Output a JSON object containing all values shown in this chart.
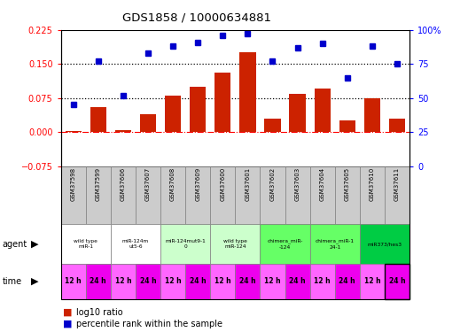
{
  "title": "GDS1858 / 10000634881",
  "samples": [
    "GSM37598",
    "GSM37599",
    "GSM37606",
    "GSM37607",
    "GSM37608",
    "GSM37609",
    "GSM37600",
    "GSM37601",
    "GSM37602",
    "GSM37603",
    "GSM37604",
    "GSM37605",
    "GSM37610",
    "GSM37611"
  ],
  "log10_ratio": [
    0.003,
    0.055,
    0.005,
    0.04,
    0.08,
    0.1,
    0.13,
    0.175,
    0.03,
    0.085,
    0.095,
    0.025,
    0.075,
    0.03
  ],
  "percentile_rank": [
    45,
    77,
    52,
    83,
    88,
    91,
    96,
    97,
    77,
    87,
    90,
    65,
    88,
    75
  ],
  "show_percentile": [
    true,
    true,
    true,
    true,
    true,
    true,
    true,
    true,
    true,
    true,
    true,
    true,
    true,
    true
  ],
  "ylim_left": [
    -0.075,
    0.225
  ],
  "ylim_right": [
    0,
    100
  ],
  "yticks_left": [
    -0.075,
    0.0,
    0.075,
    0.15,
    0.225
  ],
  "yticks_right": [
    0,
    25,
    50,
    75,
    100
  ],
  "hlines": [
    0.075,
    0.15
  ],
  "bar_color": "#cc2200",
  "dot_color": "#0000cc",
  "agent_groups": [
    {
      "label": "wild type\nmiR-1",
      "start": 0,
      "end": 2,
      "color": "#ffffff"
    },
    {
      "label": "miR-124m\nut5-6",
      "start": 2,
      "end": 4,
      "color": "#ffffff"
    },
    {
      "label": "miR-124mut9-1\n0",
      "start": 4,
      "end": 6,
      "color": "#ccffcc"
    },
    {
      "label": "wild type\nmiR-124",
      "start": 6,
      "end": 8,
      "color": "#ccffcc"
    },
    {
      "label": "chimera_miR-\n-124",
      "start": 8,
      "end": 10,
      "color": "#66ff66"
    },
    {
      "label": "chimera_miR-1\n24-1",
      "start": 10,
      "end": 12,
      "color": "#66ff66"
    },
    {
      "label": "miR373/hes3",
      "start": 12,
      "end": 14,
      "color": "#00cc44"
    }
  ],
  "time_labels": [
    "12 h",
    "24 h",
    "12 h",
    "24 h",
    "12 h",
    "24 h",
    "12 h",
    "24 h",
    "12 h",
    "24 h",
    "12 h",
    "24 h",
    "12 h",
    "24 h"
  ],
  "sample_bg": "#cccccc",
  "time_color_odd": "#ff66ff",
  "time_color_even": "#ee00ee",
  "legend_bar_color": "#cc2200",
  "legend_dot_color": "#0000cc"
}
